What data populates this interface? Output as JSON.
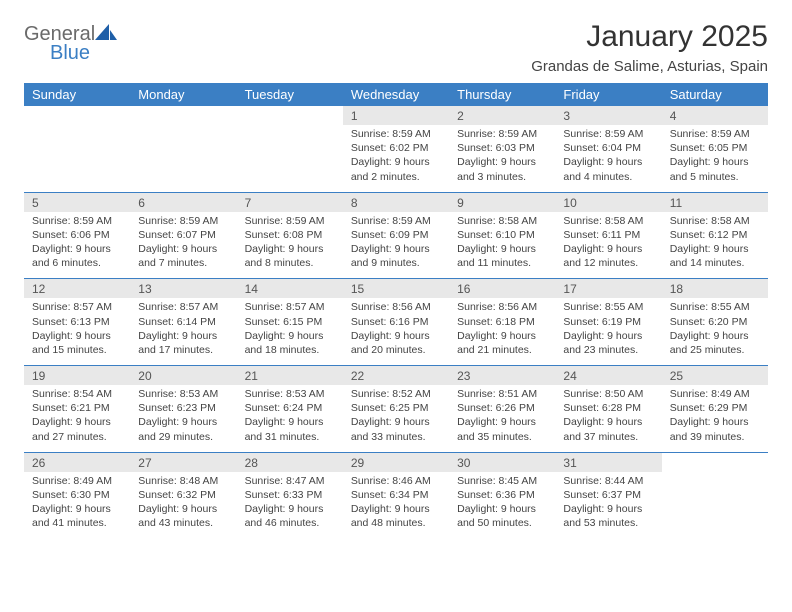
{
  "logo": {
    "line1": "General",
    "line2": "Blue"
  },
  "title": "January 2025",
  "location": "Grandas de Salime, Asturias, Spain",
  "colors": {
    "header_bg": "#3b7fc4",
    "header_text": "#ffffff",
    "daynum_bg": "#e8e8e8",
    "text": "#444444",
    "rule": "#3b7fc4"
  },
  "day_headers": [
    "Sunday",
    "Monday",
    "Tuesday",
    "Wednesday",
    "Thursday",
    "Friday",
    "Saturday"
  ],
  "weeks": [
    [
      null,
      null,
      null,
      {
        "n": "1",
        "sr": "8:59 AM",
        "ss": "6:02 PM",
        "dl": "9 hours and 2 minutes."
      },
      {
        "n": "2",
        "sr": "8:59 AM",
        "ss": "6:03 PM",
        "dl": "9 hours and 3 minutes."
      },
      {
        "n": "3",
        "sr": "8:59 AM",
        "ss": "6:04 PM",
        "dl": "9 hours and 4 minutes."
      },
      {
        "n": "4",
        "sr": "8:59 AM",
        "ss": "6:05 PM",
        "dl": "9 hours and 5 minutes."
      }
    ],
    [
      {
        "n": "5",
        "sr": "8:59 AM",
        "ss": "6:06 PM",
        "dl": "9 hours and 6 minutes."
      },
      {
        "n": "6",
        "sr": "8:59 AM",
        "ss": "6:07 PM",
        "dl": "9 hours and 7 minutes."
      },
      {
        "n": "7",
        "sr": "8:59 AM",
        "ss": "6:08 PM",
        "dl": "9 hours and 8 minutes."
      },
      {
        "n": "8",
        "sr": "8:59 AM",
        "ss": "6:09 PM",
        "dl": "9 hours and 9 minutes."
      },
      {
        "n": "9",
        "sr": "8:58 AM",
        "ss": "6:10 PM",
        "dl": "9 hours and 11 minutes."
      },
      {
        "n": "10",
        "sr": "8:58 AM",
        "ss": "6:11 PM",
        "dl": "9 hours and 12 minutes."
      },
      {
        "n": "11",
        "sr": "8:58 AM",
        "ss": "6:12 PM",
        "dl": "9 hours and 14 minutes."
      }
    ],
    [
      {
        "n": "12",
        "sr": "8:57 AM",
        "ss": "6:13 PM",
        "dl": "9 hours and 15 minutes."
      },
      {
        "n": "13",
        "sr": "8:57 AM",
        "ss": "6:14 PM",
        "dl": "9 hours and 17 minutes."
      },
      {
        "n": "14",
        "sr": "8:57 AM",
        "ss": "6:15 PM",
        "dl": "9 hours and 18 minutes."
      },
      {
        "n": "15",
        "sr": "8:56 AM",
        "ss": "6:16 PM",
        "dl": "9 hours and 20 minutes."
      },
      {
        "n": "16",
        "sr": "8:56 AM",
        "ss": "6:18 PM",
        "dl": "9 hours and 21 minutes."
      },
      {
        "n": "17",
        "sr": "8:55 AM",
        "ss": "6:19 PM",
        "dl": "9 hours and 23 minutes."
      },
      {
        "n": "18",
        "sr": "8:55 AM",
        "ss": "6:20 PM",
        "dl": "9 hours and 25 minutes."
      }
    ],
    [
      {
        "n": "19",
        "sr": "8:54 AM",
        "ss": "6:21 PM",
        "dl": "9 hours and 27 minutes."
      },
      {
        "n": "20",
        "sr": "8:53 AM",
        "ss": "6:23 PM",
        "dl": "9 hours and 29 minutes."
      },
      {
        "n": "21",
        "sr": "8:53 AM",
        "ss": "6:24 PM",
        "dl": "9 hours and 31 minutes."
      },
      {
        "n": "22",
        "sr": "8:52 AM",
        "ss": "6:25 PM",
        "dl": "9 hours and 33 minutes."
      },
      {
        "n": "23",
        "sr": "8:51 AM",
        "ss": "6:26 PM",
        "dl": "9 hours and 35 minutes."
      },
      {
        "n": "24",
        "sr": "8:50 AM",
        "ss": "6:28 PM",
        "dl": "9 hours and 37 minutes."
      },
      {
        "n": "25",
        "sr": "8:49 AM",
        "ss": "6:29 PM",
        "dl": "9 hours and 39 minutes."
      }
    ],
    [
      {
        "n": "26",
        "sr": "8:49 AM",
        "ss": "6:30 PM",
        "dl": "9 hours and 41 minutes."
      },
      {
        "n": "27",
        "sr": "8:48 AM",
        "ss": "6:32 PM",
        "dl": "9 hours and 43 minutes."
      },
      {
        "n": "28",
        "sr": "8:47 AM",
        "ss": "6:33 PM",
        "dl": "9 hours and 46 minutes."
      },
      {
        "n": "29",
        "sr": "8:46 AM",
        "ss": "6:34 PM",
        "dl": "9 hours and 48 minutes."
      },
      {
        "n": "30",
        "sr": "8:45 AM",
        "ss": "6:36 PM",
        "dl": "9 hours and 50 minutes."
      },
      {
        "n": "31",
        "sr": "8:44 AM",
        "ss": "6:37 PM",
        "dl": "9 hours and 53 minutes."
      },
      null
    ]
  ],
  "labels": {
    "sunrise": "Sunrise: ",
    "sunset": "Sunset: ",
    "daylight": "Daylight: "
  }
}
